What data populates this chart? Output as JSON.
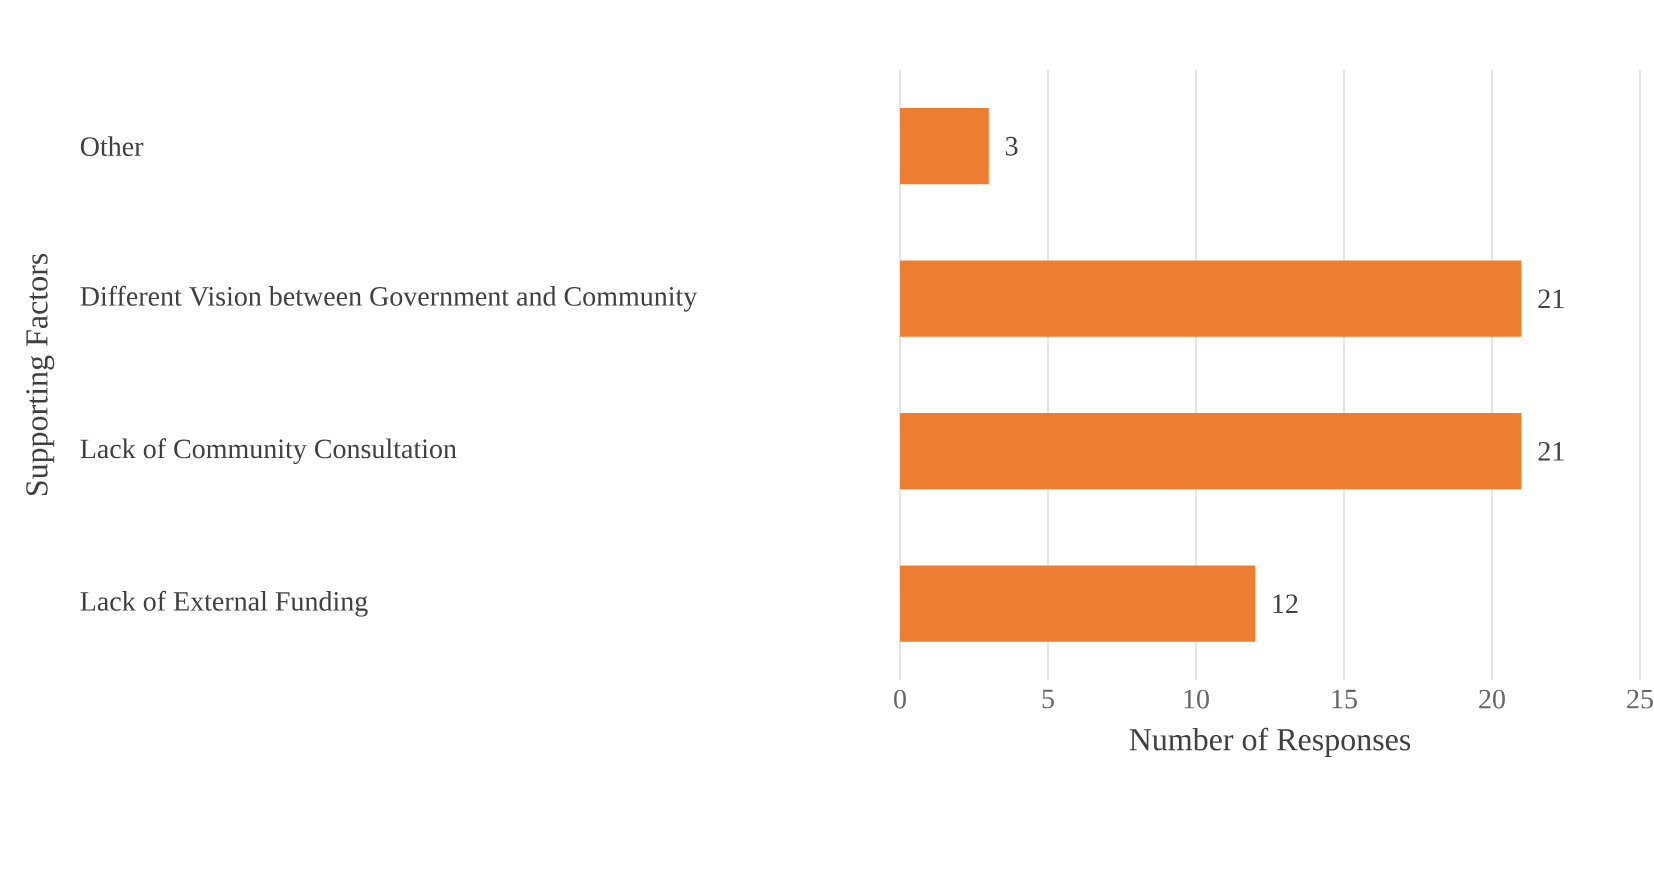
{
  "chart_data": {
    "type": "bar",
    "orientation": "horizontal",
    "xlabel": "Number of Responses",
    "ylabel": "Supporting Factors",
    "categories": [
      "Other",
      "Different Vision between Government and Community",
      "Lack of Community Consultation",
      "Lack of External Funding"
    ],
    "values": [
      3,
      21,
      21,
      12
    ],
    "color": "#ed7d31",
    "xlim": [
      0,
      25
    ],
    "xticks": [
      0,
      5,
      10,
      15,
      20,
      25
    ],
    "grid": "x",
    "data_labels": true
  }
}
